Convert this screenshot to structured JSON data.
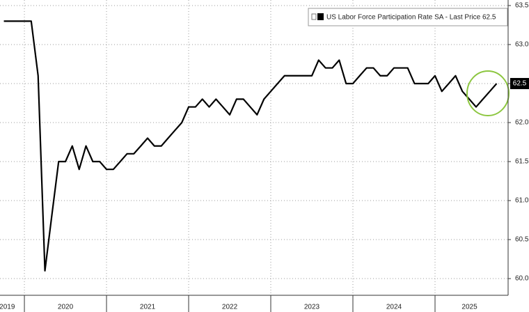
{
  "chart_data": {
    "type": "line",
    "x": [
      2019.75,
      2019.833,
      2019.917,
      2020,
      2020.083,
      2020.167,
      2020.25,
      2020.333,
      2020.417,
      2020.5,
      2020.583,
      2020.667,
      2020.75,
      2020.833,
      2020.917,
      2021,
      2021.083,
      2021.167,
      2021.25,
      2021.333,
      2021.417,
      2021.5,
      2021.583,
      2021.667,
      2021.75,
      2021.833,
      2021.917,
      2022,
      2022.083,
      2022.167,
      2022.25,
      2022.333,
      2022.417,
      2022.5,
      2022.583,
      2022.667,
      2022.75,
      2022.833,
      2022.917,
      2023,
      2023.083,
      2023.167,
      2023.25,
      2023.333,
      2023.417,
      2023.5,
      2023.583,
      2023.667,
      2023.75,
      2023.833,
      2023.917,
      2024,
      2024.083,
      2024.167,
      2024.25,
      2024.333,
      2024.417,
      2024.5,
      2024.583,
      2024.667,
      2024.75,
      2024.833,
      2024.917,
      2025,
      2025.083,
      2025.167,
      2025.25,
      2025.333,
      2025.417,
      2025.5,
      2025.583,
      2025.667,
      2025.75
    ],
    "series": [
      {
        "name": "US Labor Force Participation Rate SA - Last Price 62.5",
        "color": "#000000",
        "values": [
          63.3,
          63.3,
          63.3,
          63.3,
          63.3,
          62.6,
          60.1,
          60.8,
          61.5,
          61.5,
          61.7,
          61.4,
          61.7,
          61.5,
          61.5,
          61.4,
          61.4,
          61.5,
          61.6,
          61.6,
          61.7,
          61.8,
          61.7,
          61.7,
          61.8,
          61.9,
          62.0,
          62.2,
          62.2,
          62.3,
          62.2,
          62.3,
          62.2,
          62.1,
          62.3,
          62.3,
          62.2,
          62.1,
          62.3,
          62.4,
          62.5,
          62.6,
          62.6,
          62.6,
          62.6,
          62.6,
          62.8,
          62.7,
          62.7,
          62.8,
          62.5,
          62.5,
          62.6,
          62.7,
          62.7,
          62.6,
          62.6,
          62.7,
          62.7,
          62.7,
          62.5,
          62.5,
          62.5,
          62.6,
          62.4,
          62.5,
          62.6,
          62.4,
          62.3,
          62.2,
          62.3,
          62.4,
          62.5
        ]
      }
    ],
    "xlim": [
      2019.703,
      2025.89
    ],
    "xticks": [
      {
        "value": 2019.79,
        "label": "2019"
      },
      {
        "value": 2020.5,
        "label": "2020"
      },
      {
        "value": 2021.5,
        "label": "2021"
      },
      {
        "value": 2022.5,
        "label": "2022"
      },
      {
        "value": 2023.5,
        "label": "2023"
      },
      {
        "value": 2024.5,
        "label": "2024"
      },
      {
        "value": 2025.42,
        "label": "2025"
      }
    ],
    "xgrid": [
      2020,
      2021,
      2022,
      2023,
      2024,
      2025
    ],
    "ylim": [
      59.786,
      63.571
    ],
    "yticks": [
      {
        "value": 60,
        "label": "60.0"
      },
      60.5,
      {
        "value": 61,
        "label": "61.0"
      },
      61.5,
      {
        "value": 62,
        "label": "62.0"
      },
      62.5,
      {
        "value": 63,
        "label": "63.0"
      },
      63.5
    ],
    "grid": true,
    "legend": "top-right"
  }
}
